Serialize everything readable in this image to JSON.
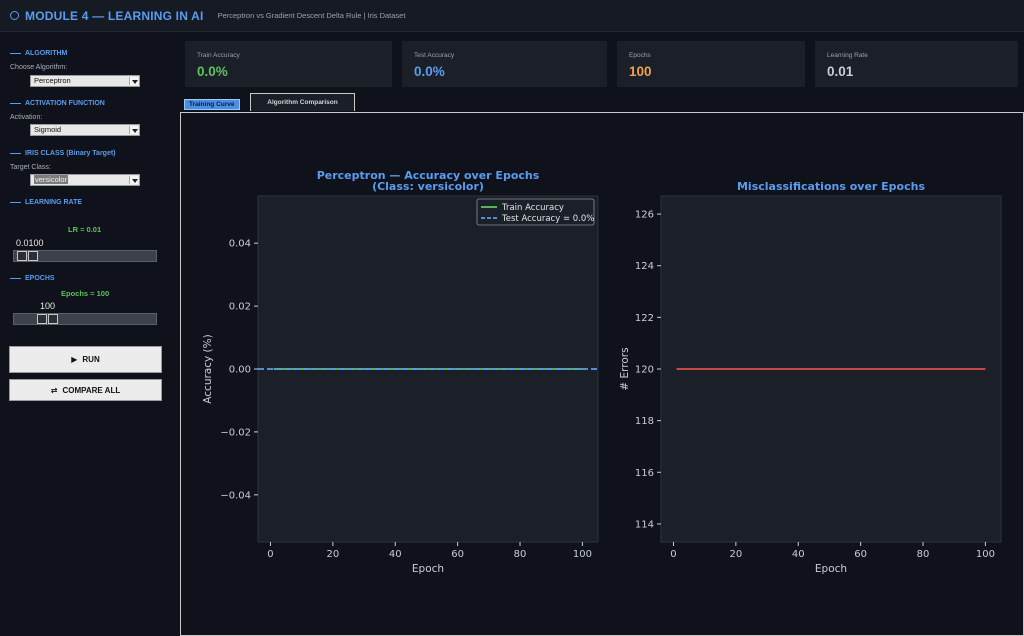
{
  "header": {
    "title": "MODULE 4 — LEARNING IN AI",
    "subtitle": "Perceptron  vs  Gradient Descent Delta Rule  |  Iris Dataset"
  },
  "sidebar": {
    "algorithm": {
      "section": "ALGORITHM",
      "label": "Choose Algorithm:",
      "value": "Perceptron"
    },
    "activation": {
      "section": "ACTIVATION FUNCTION",
      "label": "Activation:",
      "value": "Sigmoid"
    },
    "iris": {
      "section": "IRIS CLASS (Binary Target)",
      "label": "Target Class:",
      "value": "versicolor"
    },
    "learning_rate": {
      "section": "LEARNING RATE",
      "display": "LR = 0.01",
      "value_text": "0.0100",
      "slider_fraction": 0.02
    },
    "epochs": {
      "section": "EPOCHS",
      "display": "Epochs = 100",
      "value_text": "100",
      "slider_fraction": 0.2
    },
    "run_label": "RUN",
    "compare_label": "COMPARE ALL"
  },
  "metrics": [
    {
      "title": "Train Accuracy",
      "value": "0.0%",
      "color": "#5ec25e"
    },
    {
      "title": "Test Accuracy",
      "value": "0.0%",
      "color": "#5a9cf0"
    },
    {
      "title": "Epochs",
      "value": "100",
      "color": "#f0a050"
    },
    {
      "title": "Learning Rate",
      "value": "0.01",
      "color": "#c8cdd6"
    }
  ],
  "tabs": [
    {
      "label": "Training Curve",
      "active": true
    },
    {
      "label": "Algorithm Comparison",
      "active": false
    }
  ],
  "chart_data": [
    {
      "type": "line",
      "title": "Perceptron — Accuracy over Epochs",
      "subtitle": "(Class: versicolor)",
      "xlabel": "Epoch",
      "ylabel": "Accuracy (%)",
      "xlim": [
        -4,
        105
      ],
      "ylim": [
        -0.055,
        0.055
      ],
      "xticks": [
        0,
        20,
        40,
        60,
        80,
        100
      ],
      "yticks": [
        0.04,
        0.02,
        0.0,
        -0.02,
        -0.04
      ],
      "ytick_labels": [
        "0.04",
        "0.02",
        "0.00",
        "−0.02",
        "−0.04"
      ],
      "legend": "top-right",
      "series": [
        {
          "name": "Train Accuracy",
          "style": "solid",
          "color": "#5ec25e",
          "x": [
            1,
            100
          ],
          "y": [
            0,
            0
          ]
        },
        {
          "name": "Test Accuracy = 0.0%",
          "style": "dashed",
          "color": "#5a9cf0",
          "x": [
            -4,
            105
          ],
          "y": [
            0,
            0
          ]
        }
      ]
    },
    {
      "type": "line",
      "title": "Misclassifications over Epochs",
      "xlabel": "Epoch",
      "ylabel": "# Errors",
      "xlim": [
        -4,
        105
      ],
      "ylim": [
        113.3,
        126.7
      ],
      "xticks": [
        0,
        20,
        40,
        60,
        80,
        100
      ],
      "yticks": [
        126,
        124,
        122,
        120,
        118,
        116,
        114
      ],
      "ytick_labels": [
        "126",
        "124",
        "122",
        "120",
        "118",
        "116",
        "114"
      ],
      "series": [
        {
          "style": "solid",
          "color": "#e0504a",
          "x": [
            1,
            100
          ],
          "y": [
            120,
            120
          ]
        }
      ]
    }
  ]
}
